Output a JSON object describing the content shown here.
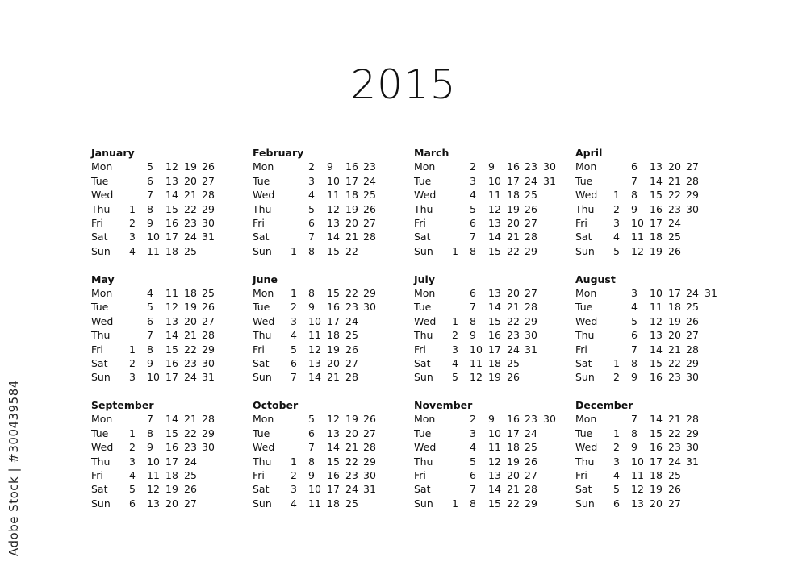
{
  "year": "2015",
  "weekday_labels": [
    "Mon",
    "Tue",
    "Wed",
    "Thu",
    "Fri",
    "Sat",
    "Sun"
  ],
  "watermark_id": "Adobe Stock | #300439584",
  "months": [
    {
      "name": "January",
      "rows": [
        [
          "",
          5,
          12,
          19,
          26
        ],
        [
          "",
          6,
          13,
          20,
          27
        ],
        [
          "",
          7,
          14,
          21,
          28
        ],
        [
          1,
          8,
          15,
          22,
          29
        ],
        [
          2,
          9,
          16,
          23,
          30
        ],
        [
          3,
          10,
          17,
          24,
          31
        ],
        [
          4,
          11,
          18,
          25
        ]
      ]
    },
    {
      "name": "February",
      "rows": [
        [
          "",
          2,
          9,
          16,
          23
        ],
        [
          "",
          3,
          10,
          17,
          24
        ],
        [
          "",
          4,
          11,
          18,
          25
        ],
        [
          "",
          5,
          12,
          19,
          26
        ],
        [
          "",
          6,
          13,
          20,
          27
        ],
        [
          "",
          7,
          14,
          21,
          28
        ],
        [
          1,
          8,
          15,
          22
        ]
      ]
    },
    {
      "name": "March",
      "rows": [
        [
          "",
          2,
          9,
          16,
          23,
          30
        ],
        [
          "",
          3,
          10,
          17,
          24,
          31
        ],
        [
          "",
          4,
          11,
          18,
          25
        ],
        [
          "",
          5,
          12,
          19,
          26
        ],
        [
          "",
          6,
          13,
          20,
          27
        ],
        [
          "",
          7,
          14,
          21,
          28
        ],
        [
          1,
          8,
          15,
          22,
          29
        ]
      ]
    },
    {
      "name": "April",
      "rows": [
        [
          "",
          6,
          13,
          20,
          27
        ],
        [
          "",
          7,
          14,
          21,
          28
        ],
        [
          1,
          8,
          15,
          22,
          29
        ],
        [
          2,
          9,
          16,
          23,
          30
        ],
        [
          3,
          10,
          17,
          24
        ],
        [
          4,
          11,
          18,
          25
        ],
        [
          5,
          12,
          19,
          26
        ]
      ]
    },
    {
      "name": "May",
      "rows": [
        [
          "",
          4,
          11,
          18,
          25
        ],
        [
          "",
          5,
          12,
          19,
          26
        ],
        [
          "",
          6,
          13,
          20,
          27
        ],
        [
          "",
          7,
          14,
          21,
          28
        ],
        [
          1,
          8,
          15,
          22,
          29
        ],
        [
          2,
          9,
          16,
          23,
          30
        ],
        [
          3,
          10,
          17,
          24,
          31
        ]
      ]
    },
    {
      "name": "June",
      "rows": [
        [
          1,
          8,
          15,
          22,
          29
        ],
        [
          2,
          9,
          16,
          23,
          30
        ],
        [
          3,
          10,
          17,
          24
        ],
        [
          4,
          11,
          18,
          25
        ],
        [
          5,
          12,
          19,
          26
        ],
        [
          6,
          13,
          20,
          27
        ],
        [
          7,
          14,
          21,
          28
        ]
      ]
    },
    {
      "name": "July",
      "rows": [
        [
          "",
          6,
          13,
          20,
          27
        ],
        [
          "",
          7,
          14,
          21,
          28
        ],
        [
          1,
          8,
          15,
          22,
          29
        ],
        [
          2,
          9,
          16,
          23,
          30
        ],
        [
          3,
          10,
          17,
          24,
          31
        ],
        [
          4,
          11,
          18,
          25
        ],
        [
          5,
          12,
          19,
          26
        ]
      ]
    },
    {
      "name": "August",
      "rows": [
        [
          "",
          3,
          10,
          17,
          24,
          31
        ],
        [
          "",
          4,
          11,
          18,
          25
        ],
        [
          "",
          5,
          12,
          19,
          26
        ],
        [
          "",
          6,
          13,
          20,
          27
        ],
        [
          "",
          7,
          14,
          21,
          28
        ],
        [
          1,
          8,
          15,
          22,
          29
        ],
        [
          2,
          9,
          16,
          23,
          30
        ]
      ]
    },
    {
      "name": "September",
      "rows": [
        [
          "",
          7,
          14,
          21,
          28
        ],
        [
          1,
          8,
          15,
          22,
          29
        ],
        [
          2,
          9,
          16,
          23,
          30
        ],
        [
          3,
          10,
          17,
          24
        ],
        [
          4,
          11,
          18,
          25
        ],
        [
          5,
          12,
          19,
          26
        ],
        [
          6,
          13,
          20,
          27
        ]
      ]
    },
    {
      "name": "October",
      "rows": [
        [
          "",
          5,
          12,
          19,
          26
        ],
        [
          "",
          6,
          13,
          20,
          27
        ],
        [
          "",
          7,
          14,
          21,
          28
        ],
        [
          1,
          8,
          15,
          22,
          29
        ],
        [
          2,
          9,
          16,
          23,
          30
        ],
        [
          3,
          10,
          17,
          24,
          31
        ],
        [
          4,
          11,
          18,
          25
        ]
      ]
    },
    {
      "name": "November",
      "rows": [
        [
          "",
          2,
          9,
          16,
          23,
          30
        ],
        [
          "",
          3,
          10,
          17,
          24
        ],
        [
          "",
          4,
          11,
          18,
          25
        ],
        [
          "",
          5,
          12,
          19,
          26
        ],
        [
          "",
          6,
          13,
          20,
          27
        ],
        [
          "",
          7,
          14,
          21,
          28
        ],
        [
          1,
          8,
          15,
          22,
          29
        ]
      ]
    },
    {
      "name": "December",
      "rows": [
        [
          "",
          7,
          14,
          21,
          28
        ],
        [
          1,
          8,
          15,
          22,
          29
        ],
        [
          2,
          9,
          16,
          23,
          30
        ],
        [
          3,
          10,
          17,
          24,
          31
        ],
        [
          4,
          11,
          18,
          25
        ],
        [
          5,
          12,
          19,
          26
        ],
        [
          6,
          13,
          20,
          27
        ]
      ]
    }
  ]
}
